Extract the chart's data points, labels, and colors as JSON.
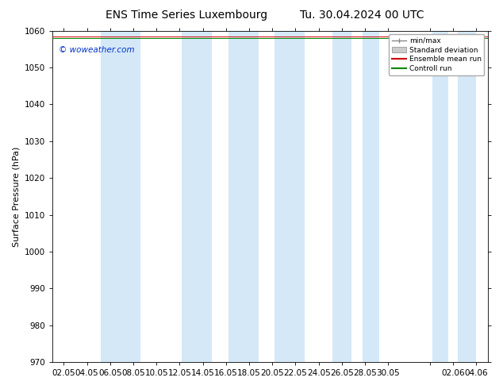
{
  "title_left": "ENS Time Series Luxembourg",
  "title_right": "Tu. 30.04.2024 00 UTC",
  "ylabel": "Surface Pressure (hPa)",
  "ylim": [
    970,
    1060
  ],
  "yticks": [
    970,
    980,
    990,
    1000,
    1010,
    1020,
    1030,
    1040,
    1050,
    1060
  ],
  "xtick_labels": [
    "02.05",
    "04.05",
    "06.05",
    "08.05",
    "10.05",
    "12.05",
    "14.05",
    "16.05",
    "18.05",
    "20.05",
    "22.05",
    "24.05",
    "26.05",
    "28.05",
    "30.05",
    "",
    "02.06",
    "04.06"
  ],
  "band_color": "#d4e8f7",
  "band_alpha": 1.0,
  "background_color": "#ffffff",
  "watermark": "© woweather.com",
  "legend_labels": [
    "min/max",
    "Standard deviation",
    "Ensemble mean run",
    "Controll run"
  ],
  "title_fontsize": 10,
  "axis_fontsize": 8,
  "tick_fontsize": 7.5,
  "band_centers_idx": [
    2,
    5,
    7,
    9,
    11,
    13,
    15,
    17
  ],
  "num_ticks": 18
}
